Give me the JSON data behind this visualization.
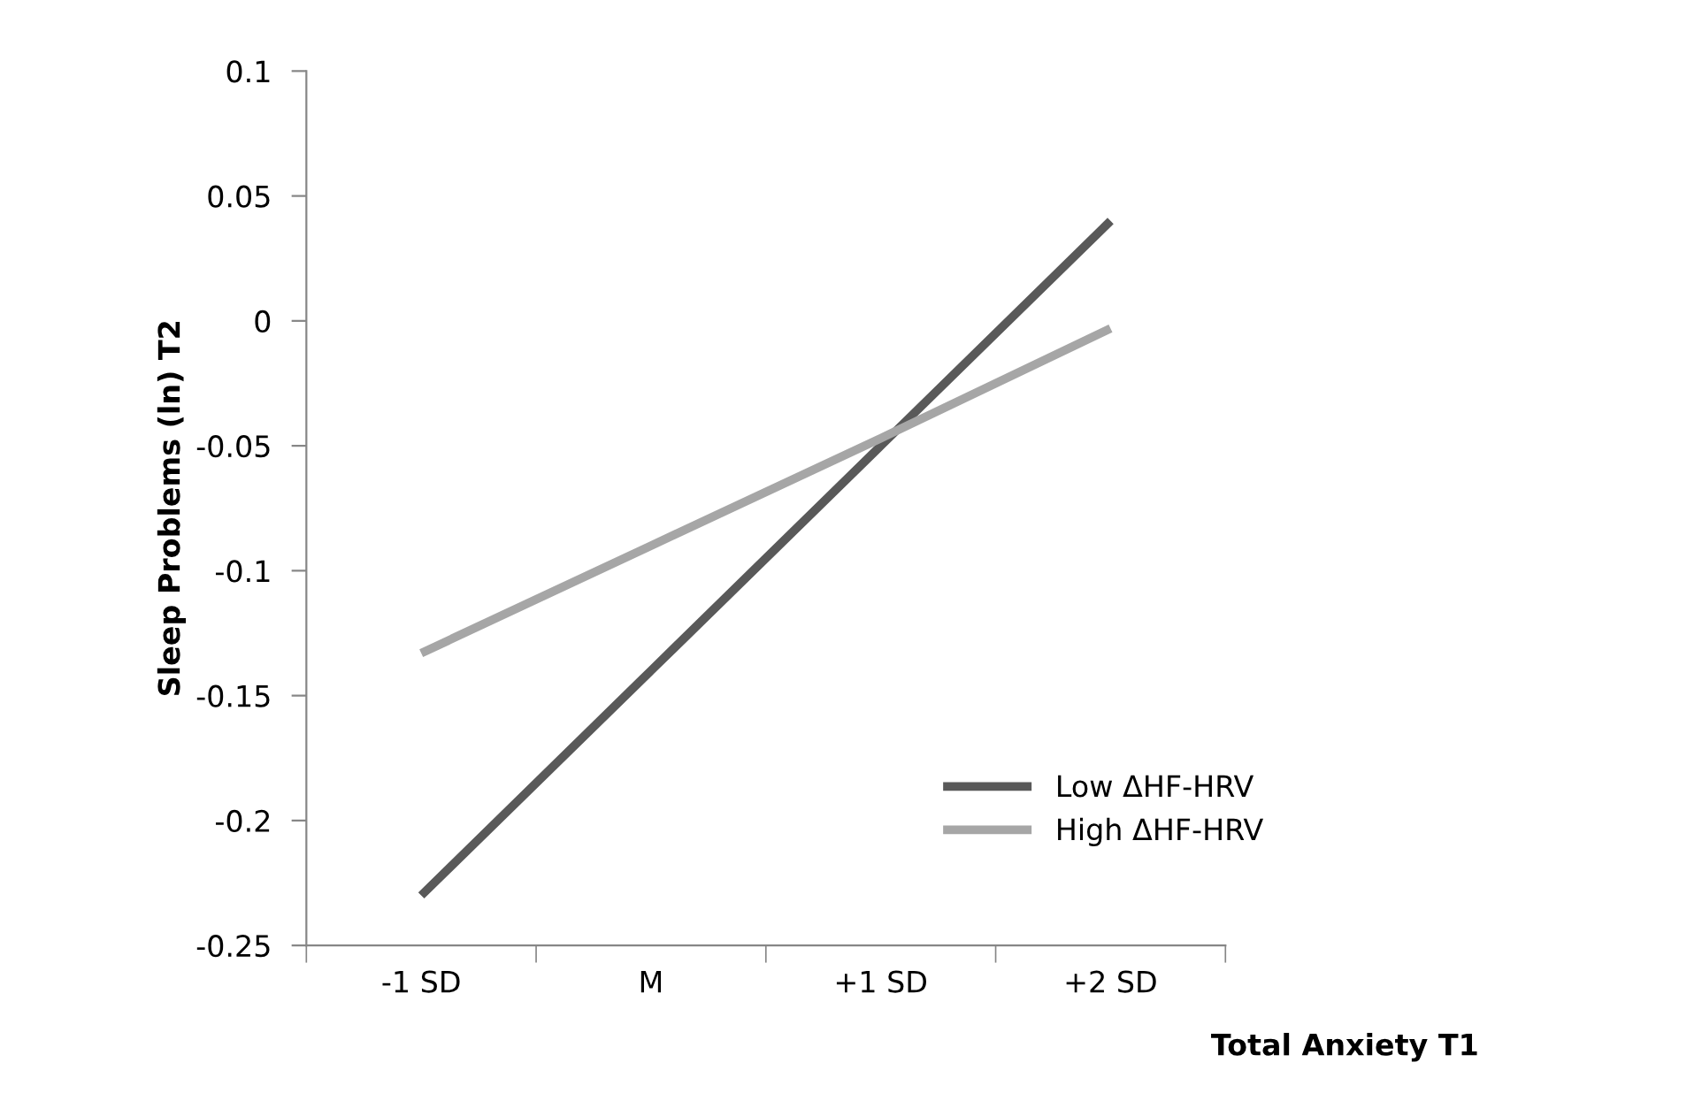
{
  "chart_data": {
    "type": "line",
    "xlabel": "Total Anxiety T1",
    "ylabel": "Sleep Problems (ln) T2",
    "categories": [
      "-1 SD",
      "M",
      "+1 SD",
      "+2 SD"
    ],
    "series": [
      {
        "name": "Low ΔHF-HRV",
        "color": "#595959",
        "values": [
          -0.23,
          -0.14,
          -0.05,
          0.04
        ]
      },
      {
        "name": "High ΔHF-HRV",
        "color": "#a6a6a6",
        "values": [
          -0.133,
          -0.09,
          -0.047,
          -0.003
        ]
      }
    ],
    "ylim": [
      -0.25,
      0.1
    ],
    "yticks": [
      -0.25,
      -0.2,
      -0.15,
      -0.1,
      -0.05,
      0,
      0.05,
      0.1
    ],
    "grid": false,
    "legend": "bottom right",
    "marker": "none",
    "line_style": "solid"
  }
}
